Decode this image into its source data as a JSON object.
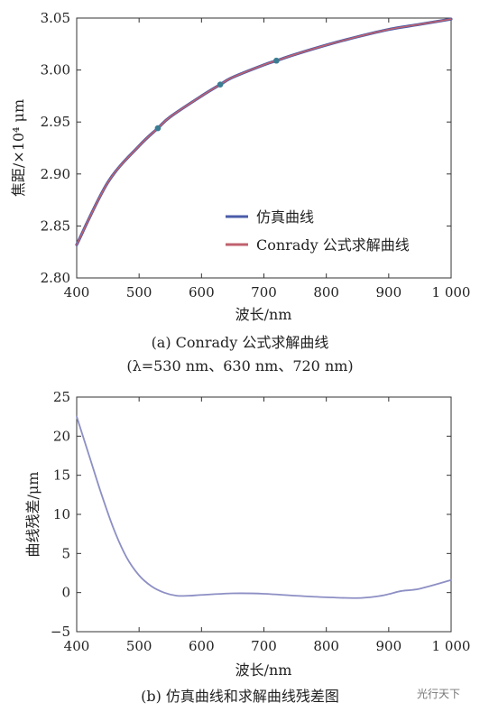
{
  "chart_data": [
    {
      "type": "line",
      "xlabel": "波长/nm",
      "ylabel": "焦距/×10⁴ μm",
      "xlim": [
        400,
        1000
      ],
      "ylim": [
        2.8,
        3.05
      ],
      "xticks": [
        "400",
        "500",
        "600",
        "700",
        "800",
        "900",
        "1 000"
      ],
      "yticks": [
        "2.80",
        "2.85",
        "2.90",
        "2.95",
        "3.00",
        "3.05"
      ],
      "grid": false,
      "legend_position": "bottom-right",
      "series": [
        {
          "name": "仿真曲线",
          "color": "#4a5ca8",
          "x": [
            400,
            450,
            500,
            530,
            550,
            600,
            630,
            650,
            700,
            720,
            750,
            800,
            850,
            900,
            950,
            1000
          ],
          "y": [
            2.832,
            2.892,
            2.927,
            2.944,
            2.955,
            2.975,
            2.986,
            2.993,
            3.005,
            3.009,
            3.015,
            3.024,
            3.032,
            3.039,
            3.044,
            3.049
          ]
        },
        {
          "name": "Conrady 公式求解曲线",
          "color": "#c0616e",
          "x": [
            400,
            450,
            500,
            530,
            550,
            600,
            630,
            650,
            700,
            720,
            750,
            800,
            850,
            900,
            950,
            1000
          ],
          "y": [
            2.832,
            2.892,
            2.927,
            2.944,
            2.955,
            2.975,
            2.986,
            2.993,
            3.005,
            3.009,
            3.015,
            3.024,
            3.032,
            3.039,
            3.044,
            3.049
          ]
        }
      ],
      "markers": [
        {
          "x": 530,
          "y": 2.944
        },
        {
          "x": 630,
          "y": 2.986
        },
        {
          "x": 720,
          "y": 3.009
        }
      ],
      "caption_line1": "(a) Conrady 公式求解曲线",
      "caption_line2": "(λ=530 nm、630 nm、720 nm)"
    },
    {
      "type": "line",
      "xlabel": "波长/nm",
      "ylabel": "曲线残差/μm",
      "xlim": [
        400,
        1000
      ],
      "ylim": [
        -5,
        25
      ],
      "xticks": [
        "400",
        "500",
        "600",
        "700",
        "800",
        "900",
        "1 000"
      ],
      "yticks": [
        "−5",
        "0",
        "5",
        "10",
        "15",
        "20",
        "25"
      ],
      "grid": false,
      "series": [
        {
          "color": "#8d8fc4",
          "x": [
            400,
            420,
            440,
            460,
            480,
            500,
            520,
            540,
            560,
            580,
            600,
            650,
            700,
            750,
            800,
            850,
            880,
            900,
            920,
            950,
            1000
          ],
          "y": [
            22.5,
            17.5,
            12.5,
            8.0,
            4.5,
            2.2,
            0.8,
            0.0,
            -0.4,
            -0.4,
            -0.3,
            -0.1,
            -0.15,
            -0.4,
            -0.6,
            -0.7,
            -0.5,
            -0.2,
            0.2,
            0.5,
            1.6
          ]
        }
      ],
      "caption": "(b) 仿真曲线和求解曲线残差图"
    }
  ],
  "watermark": "光行天下"
}
